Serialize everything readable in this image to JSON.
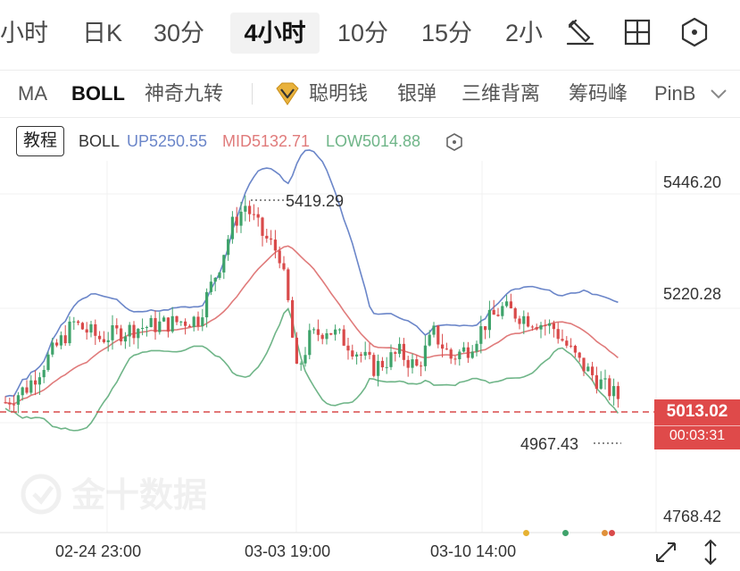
{
  "timeframes": [
    "小时",
    "日K",
    "30分",
    "4小时",
    "10分",
    "15分",
    "2小"
  ],
  "active_timeframe": "4小时",
  "indicators": {
    "ma": "MA",
    "boll": "BOLL",
    "magic": "神奇九转",
    "smart_money": "聪明钱",
    "silver_bullet": "银弹",
    "divergence": "三维背离",
    "chip_peak": "筹码峰",
    "pinbar": "PinB"
  },
  "legend": {
    "tutorial": "教程",
    "name": "BOLL",
    "up": "UP5250.55",
    "mid": "MID5132.71",
    "low": "LOW5014.88"
  },
  "price_axis": {
    "top": "5446.20",
    "upper": "5220.28",
    "bottom": "4768.42"
  },
  "annotations": {
    "high": "5419.29",
    "low": "4967.43"
  },
  "current": {
    "price": "5013.02",
    "timer": "00:03:31"
  },
  "time_axis": [
    "02-24 23:00",
    "03-03 19:00",
    "03-10 14:00"
  ],
  "watermark": "金十数据",
  "colors": {
    "up_candle": "#3fa36b",
    "down_candle": "#d94a4a",
    "boll_up": "#6b86c9",
    "boll_mid": "#e07b7b",
    "boll_low": "#6fb588",
    "current_line": "#d94a4a"
  }
}
